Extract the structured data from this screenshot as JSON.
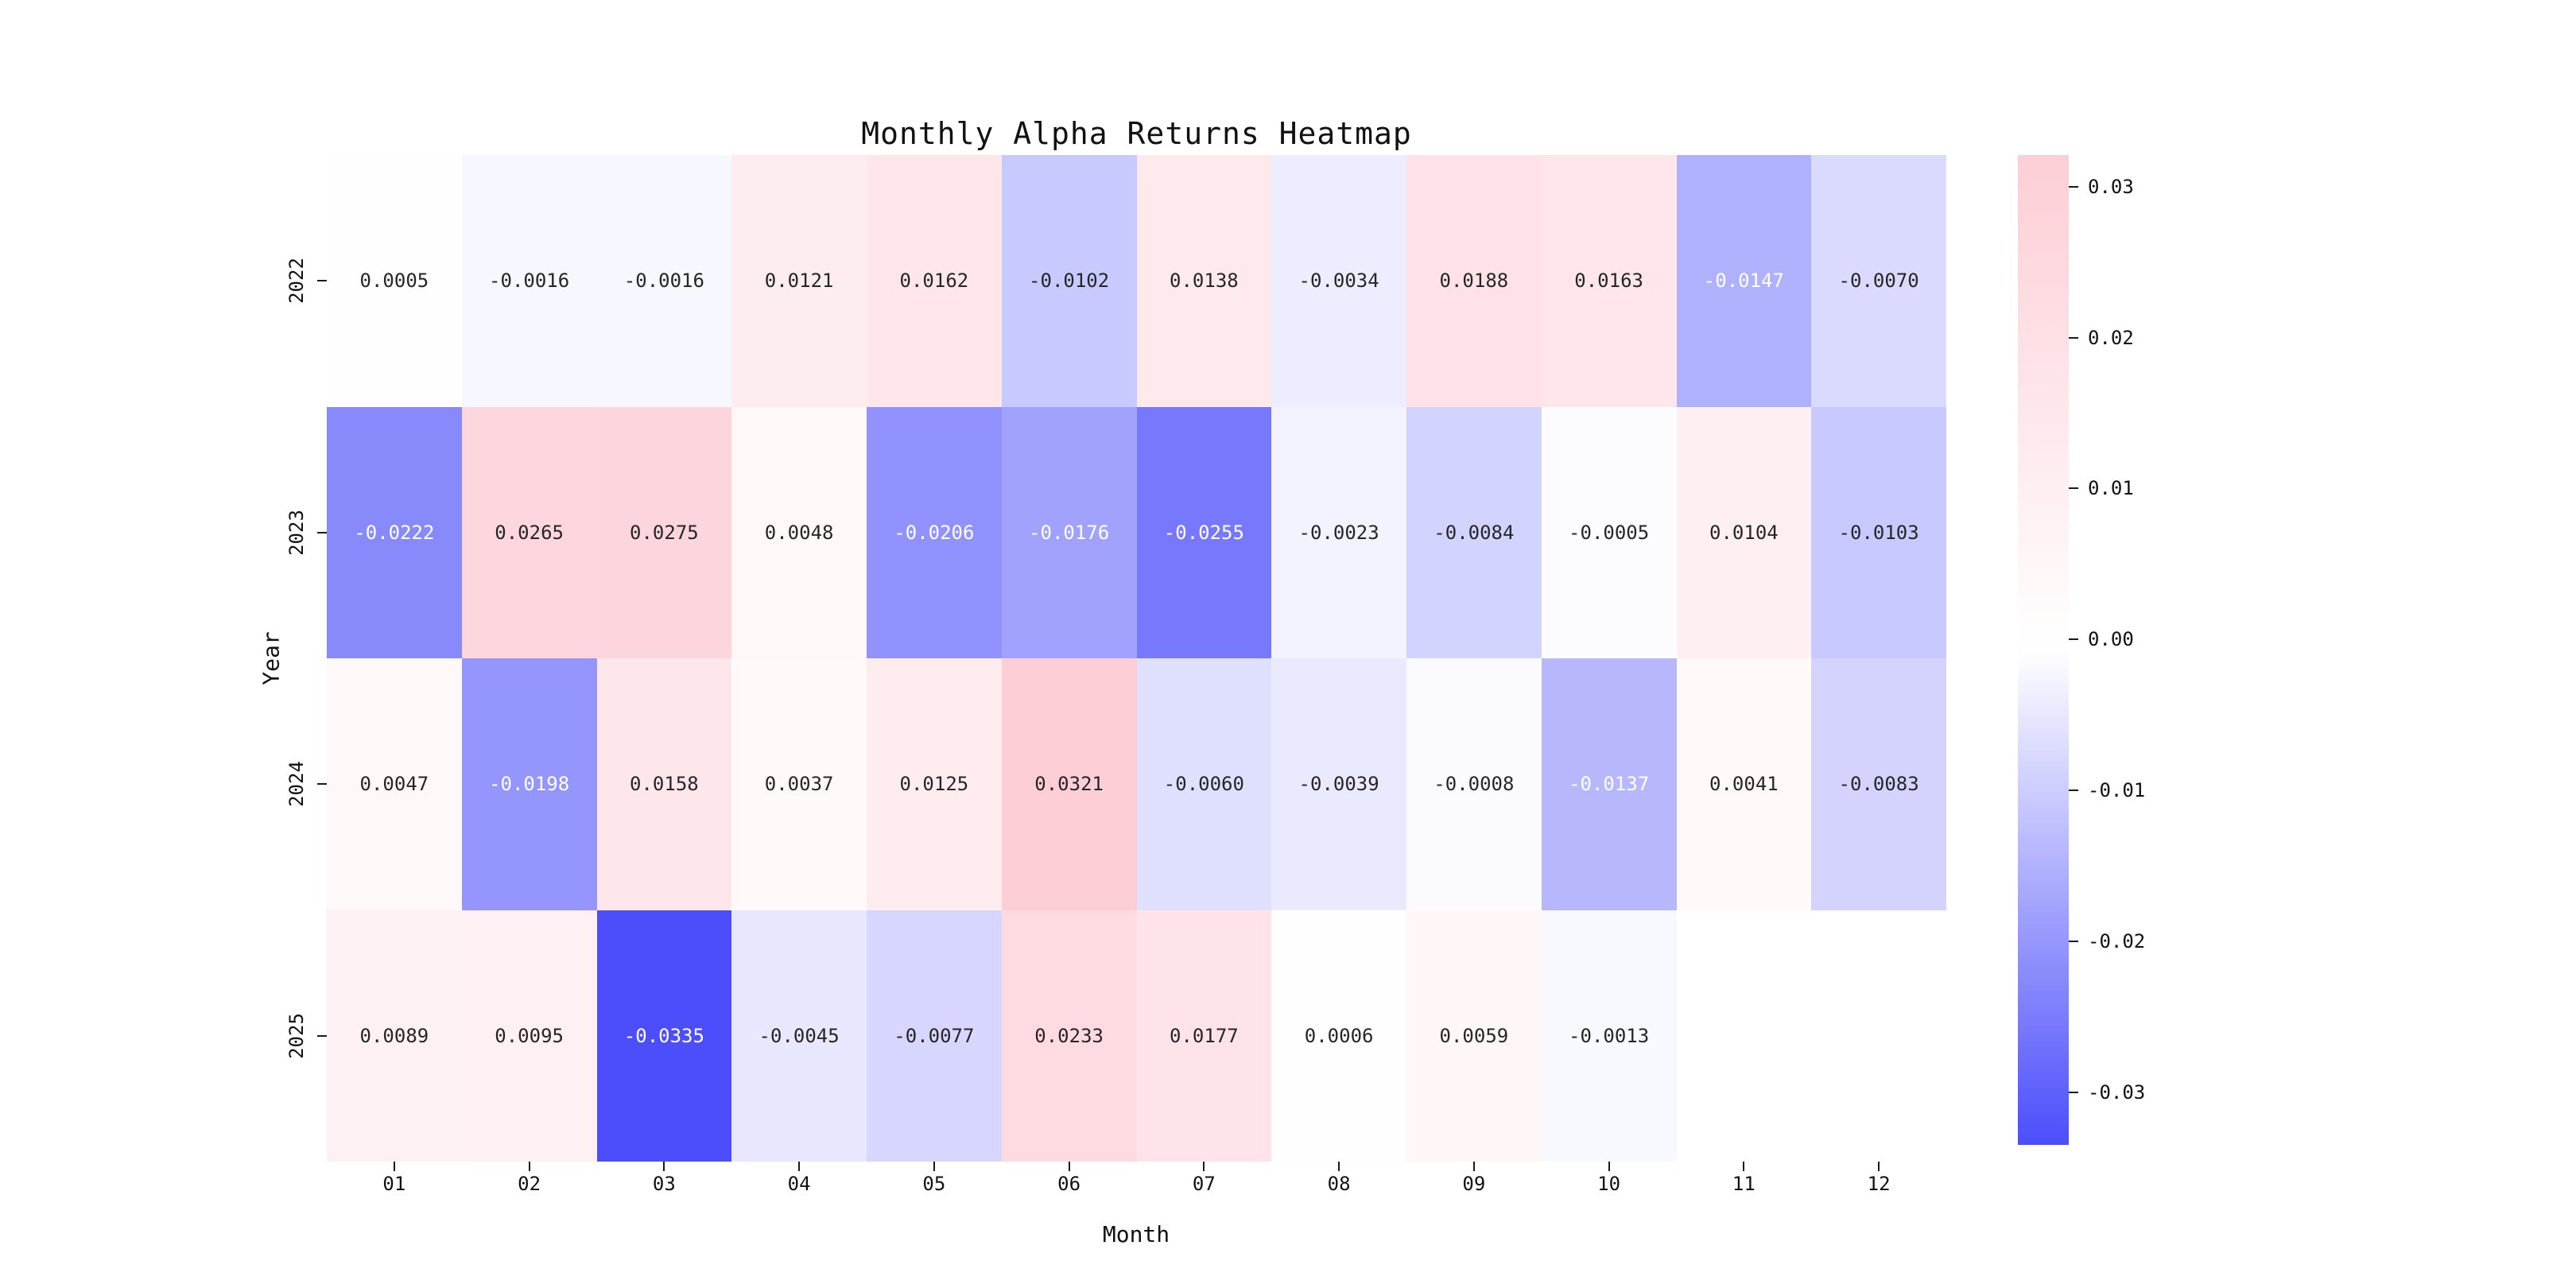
{
  "chart_data": {
    "type": "heatmap",
    "title": "Monthly Alpha Returns Heatmap",
    "xlabel": "Month",
    "ylabel": "Year",
    "columns": [
      "01",
      "02",
      "03",
      "04",
      "05",
      "06",
      "07",
      "08",
      "09",
      "10",
      "11",
      "12"
    ],
    "rows": [
      "2022",
      "2023",
      "2024",
      "2025"
    ],
    "values": [
      [
        0.0005,
        -0.0016,
        -0.0016,
        0.0121,
        0.0162,
        -0.0102,
        0.0138,
        -0.0034,
        0.0188,
        0.0163,
        -0.0147,
        -0.007
      ],
      [
        -0.0222,
        0.0265,
        0.0275,
        0.0048,
        -0.0206,
        -0.0176,
        -0.0255,
        -0.0023,
        -0.0084,
        -0.0005,
        0.0104,
        -0.0103
      ],
      [
        0.0047,
        -0.0198,
        0.0158,
        0.0037,
        0.0125,
        0.0321,
        -0.006,
        -0.0039,
        -0.0008,
        -0.0137,
        0.0041,
        -0.0083
      ],
      [
        0.0089,
        0.0095,
        -0.0335,
        -0.0045,
        -0.0077,
        0.0233,
        0.0177,
        0.0006,
        0.0059,
        -0.0013,
        null,
        null
      ]
    ],
    "value_format_decimals": 4,
    "vmax": 0.0321,
    "vmin": -0.0335,
    "colorbar_ticks": [
      "0.03",
      "0.02",
      "0.01",
      "0.00",
      "-0.01",
      "-0.02",
      "-0.03"
    ],
    "legend_position": "right",
    "grid": false,
    "colors": {
      "positive_end": "#FDCED6",
      "mid": "#FFFFFF",
      "negative_end": "#4C4EFB",
      "annot_dark": "#262626",
      "annot_light": "#FFFFFF",
      "missing_cell": "#FFFFFF"
    }
  }
}
